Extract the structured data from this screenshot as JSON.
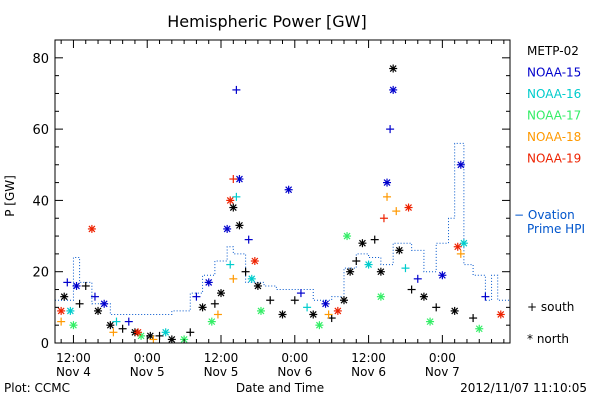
{
  "chart_data": {
    "type": "scatter",
    "title": "Hemispheric Power [GW]",
    "xlabel": "Date and Time",
    "ylabel": "P [GW]",
    "ylim": [
      0,
      85
    ],
    "xlim": [
      "2012-11-04 09:00",
      "2012-11-07 11:00"
    ],
    "y_ticks": [
      0,
      20,
      40,
      60,
      80
    ],
    "x_ticks": [
      {
        "time": "2012-11-04 12:00",
        "label1": "12:00",
        "label2": "Nov 4"
      },
      {
        "time": "2012-11-05 00:00",
        "label1": "0:00",
        "label2": "Nov 5"
      },
      {
        "time": "2012-11-05 12:00",
        "label1": "12:00",
        "label2": "Nov 5"
      },
      {
        "time": "2012-11-06 00:00",
        "label1": "0:00",
        "label2": "Nov 6"
      },
      {
        "time": "2012-11-06 12:00",
        "label1": "12:00",
        "label2": "Nov 6"
      },
      {
        "time": "2012-11-07 00:00",
        "label1": "0:00",
        "label2": "Nov 7"
      }
    ],
    "legend_position": "right",
    "series": [
      {
        "name": "METP-02",
        "color": "#000000",
        "points": [
          {
            "x": "2012-11-04 10:30",
            "y": 13,
            "m": "star"
          },
          {
            "x": "2012-11-04 13:00",
            "y": 11,
            "m": "plus"
          },
          {
            "x": "2012-11-04 14:00",
            "y": 16,
            "m": "plus"
          },
          {
            "x": "2012-11-04 16:00",
            "y": 9,
            "m": "star"
          },
          {
            "x": "2012-11-04 18:00",
            "y": 5,
            "m": "star"
          },
          {
            "x": "2012-11-04 20:00",
            "y": 4,
            "m": "plus"
          },
          {
            "x": "2012-11-04 22:00",
            "y": 3,
            "m": "star"
          },
          {
            "x": "2012-11-05 00:30",
            "y": 2,
            "m": "star"
          },
          {
            "x": "2012-11-05 02:00",
            "y": 2,
            "m": "plus"
          },
          {
            "x": "2012-11-05 04:00",
            "y": 1,
            "m": "star"
          },
          {
            "x": "2012-11-05 07:00",
            "y": 3,
            "m": "plus"
          },
          {
            "x": "2012-11-05 09:00",
            "y": 10,
            "m": "star"
          },
          {
            "x": "2012-11-05 11:00",
            "y": 11,
            "m": "plus"
          },
          {
            "x": "2012-11-05 12:00",
            "y": 14,
            "m": "star"
          },
          {
            "x": "2012-11-05 14:00",
            "y": 38,
            "m": "star"
          },
          {
            "x": "2012-11-05 15:00",
            "y": 33,
            "m": "star"
          },
          {
            "x": "2012-11-05 16:00",
            "y": 20,
            "m": "plus"
          },
          {
            "x": "2012-11-05 18:00",
            "y": 16,
            "m": "star"
          },
          {
            "x": "2012-11-05 20:00",
            "y": 12,
            "m": "plus"
          },
          {
            "x": "2012-11-05 22:00",
            "y": 8,
            "m": "star"
          },
          {
            "x": "2012-11-06 00:00",
            "y": 12,
            "m": "plus"
          },
          {
            "x": "2012-11-06 03:00",
            "y": 8,
            "m": "star"
          },
          {
            "x": "2012-11-06 06:00",
            "y": 7,
            "m": "plus"
          },
          {
            "x": "2012-11-06 08:00",
            "y": 12,
            "m": "star"
          },
          {
            "x": "2012-11-06 09:00",
            "y": 20,
            "m": "star"
          },
          {
            "x": "2012-11-06 10:00",
            "y": 23,
            "m": "plus"
          },
          {
            "x": "2012-11-06 11:00",
            "y": 28,
            "m": "star"
          },
          {
            "x": "2012-11-06 13:00",
            "y": 29,
            "m": "plus"
          },
          {
            "x": "2012-11-06 14:00",
            "y": 20,
            "m": "star"
          },
          {
            "x": "2012-11-06 16:00",
            "y": 77,
            "m": "star"
          },
          {
            "x": "2012-11-06 17:00",
            "y": 26,
            "m": "star"
          },
          {
            "x": "2012-11-06 19:00",
            "y": 15,
            "m": "plus"
          },
          {
            "x": "2012-11-06 21:00",
            "y": 13,
            "m": "star"
          },
          {
            "x": "2012-11-06 23:00",
            "y": 10,
            "m": "plus"
          },
          {
            "x": "2012-11-07 02:00",
            "y": 9,
            "m": "star"
          },
          {
            "x": "2012-11-07 05:00",
            "y": 7,
            "m": "plus"
          }
        ]
      },
      {
        "name": "NOAA-15",
        "color": "#0000cc",
        "points": [
          {
            "x": "2012-11-04 11:00",
            "y": 17,
            "m": "plus"
          },
          {
            "x": "2012-11-04 12:30",
            "y": 16,
            "m": "star"
          },
          {
            "x": "2012-11-04 15:30",
            "y": 13,
            "m": "plus"
          },
          {
            "x": "2012-11-04 17:00",
            "y": 11,
            "m": "star"
          },
          {
            "x": "2012-11-04 21:00",
            "y": 6,
            "m": "plus"
          },
          {
            "x": "2012-11-05 08:00",
            "y": 13,
            "m": "plus"
          },
          {
            "x": "2012-11-05 10:00",
            "y": 17,
            "m": "star"
          },
          {
            "x": "2012-11-05 13:00",
            "y": 32,
            "m": "star"
          },
          {
            "x": "2012-11-05 14:30",
            "y": 71,
            "m": "plus"
          },
          {
            "x": "2012-11-05 15:00",
            "y": 46,
            "m": "star"
          },
          {
            "x": "2012-11-05 16:30",
            "y": 29,
            "m": "plus"
          },
          {
            "x": "2012-11-05 23:00",
            "y": 43,
            "m": "star"
          },
          {
            "x": "2012-11-06 01:00",
            "y": 14,
            "m": "plus"
          },
          {
            "x": "2012-11-06 05:00",
            "y": 11,
            "m": "star"
          },
          {
            "x": "2012-11-06 15:00",
            "y": 45,
            "m": "star"
          },
          {
            "x": "2012-11-06 15:30",
            "y": 60,
            "m": "plus"
          },
          {
            "x": "2012-11-06 16:00",
            "y": 71,
            "m": "star"
          },
          {
            "x": "2012-11-06 20:00",
            "y": 18,
            "m": "plus"
          },
          {
            "x": "2012-11-07 00:00",
            "y": 19,
            "m": "star"
          },
          {
            "x": "2012-11-07 03:00",
            "y": 50,
            "m": "star"
          },
          {
            "x": "2012-11-07 07:00",
            "y": 13,
            "m": "plus"
          }
        ]
      },
      {
        "name": "NOAA-16",
        "color": "#00cccc",
        "points": [
          {
            "x": "2012-11-04 11:30",
            "y": 9,
            "m": "star"
          },
          {
            "x": "2012-11-04 19:00",
            "y": 6,
            "m": "plus"
          },
          {
            "x": "2012-11-05 03:00",
            "y": 3,
            "m": "star"
          },
          {
            "x": "2012-11-05 13:30",
            "y": 22,
            "m": "plus"
          },
          {
            "x": "2012-11-05 14:30",
            "y": 41,
            "m": "plus"
          },
          {
            "x": "2012-11-05 17:00",
            "y": 18,
            "m": "star"
          },
          {
            "x": "2012-11-06 02:00",
            "y": 10,
            "m": "plus"
          },
          {
            "x": "2012-11-06 12:00",
            "y": 22,
            "m": "star"
          },
          {
            "x": "2012-11-06 18:00",
            "y": 21,
            "m": "plus"
          },
          {
            "x": "2012-11-07 03:30",
            "y": 28,
            "m": "star"
          }
        ]
      },
      {
        "name": "NOAA-17",
        "color": "#33ee66",
        "points": [
          {
            "x": "2012-11-04 12:00",
            "y": 5,
            "m": "star"
          },
          {
            "x": "2012-11-04 23:00",
            "y": 2,
            "m": "star"
          },
          {
            "x": "2012-11-05 06:00",
            "y": 1,
            "m": "star"
          },
          {
            "x": "2012-11-05 10:30",
            "y": 6,
            "m": "star"
          },
          {
            "x": "2012-11-05 18:30",
            "y": 9,
            "m": "star"
          },
          {
            "x": "2012-11-06 04:00",
            "y": 5,
            "m": "star"
          },
          {
            "x": "2012-11-06 08:30",
            "y": 30,
            "m": "star"
          },
          {
            "x": "2012-11-06 14:00",
            "y": 13,
            "m": "star"
          },
          {
            "x": "2012-11-06 22:00",
            "y": 6,
            "m": "star"
          },
          {
            "x": "2012-11-07 06:00",
            "y": 4,
            "m": "star"
          }
        ]
      },
      {
        "name": "NOAA-18",
        "color": "#ff9900",
        "points": [
          {
            "x": "2012-11-04 10:00",
            "y": 6,
            "m": "plus"
          },
          {
            "x": "2012-11-04 18:30",
            "y": 3,
            "m": "plus"
          },
          {
            "x": "2012-11-05 01:00",
            "y": 1,
            "m": "plus"
          },
          {
            "x": "2012-11-05 11:30",
            "y": 8,
            "m": "plus"
          },
          {
            "x": "2012-11-05 14:00",
            "y": 18,
            "m": "plus"
          },
          {
            "x": "2012-11-06 05:30",
            "y": 8,
            "m": "plus"
          },
          {
            "x": "2012-11-06 15:00",
            "y": 41,
            "m": "plus"
          },
          {
            "x": "2012-11-06 16:30",
            "y": 37,
            "m": "plus"
          },
          {
            "x": "2012-11-07 03:00",
            "y": 25,
            "m": "plus"
          }
        ]
      },
      {
        "name": "NOAA-19",
        "color": "#ee2200",
        "points": [
          {
            "x": "2012-11-04 10:00",
            "y": 9,
            "m": "star"
          },
          {
            "x": "2012-11-04 15:00",
            "y": 32,
            "m": "star"
          },
          {
            "x": "2012-11-04 22:30",
            "y": 3,
            "m": "star"
          },
          {
            "x": "2012-11-05 13:30",
            "y": 40,
            "m": "star"
          },
          {
            "x": "2012-11-05 14:00",
            "y": 46,
            "m": "plus"
          },
          {
            "x": "2012-11-05 17:30",
            "y": 23,
            "m": "star"
          },
          {
            "x": "2012-11-06 07:00",
            "y": 9,
            "m": "star"
          },
          {
            "x": "2012-11-06 14:30",
            "y": 35,
            "m": "plus"
          },
          {
            "x": "2012-11-06 18:30",
            "y": 38,
            "m": "star"
          },
          {
            "x": "2012-11-07 02:30",
            "y": 27,
            "m": "star"
          },
          {
            "x": "2012-11-07 09:30",
            "y": 8,
            "m": "star"
          }
        ]
      }
    ],
    "ovation_hpi": {
      "name": "Ovation Prime HPI",
      "color": "#0055cc",
      "style": "dotted-step",
      "points": [
        [
          "2012-11-04 09:00",
          12
        ],
        [
          "2012-11-04 12:00",
          24
        ],
        [
          "2012-11-04 13:00",
          17
        ],
        [
          "2012-11-04 15:00",
          11
        ],
        [
          "2012-11-04 18:00",
          8
        ],
        [
          "2012-11-05 00:00",
          8
        ],
        [
          "2012-11-05 04:00",
          9
        ],
        [
          "2012-11-05 07:00",
          14
        ],
        [
          "2012-11-05 09:00",
          19
        ],
        [
          "2012-11-05 11:00",
          23
        ],
        [
          "2012-11-05 13:00",
          27
        ],
        [
          "2012-11-05 14:00",
          25
        ],
        [
          "2012-11-05 16:00",
          17
        ],
        [
          "2012-11-05 19:00",
          16
        ],
        [
          "2012-11-05 21:00",
          15
        ],
        [
          "2012-11-06 00:00",
          15
        ],
        [
          "2012-11-06 03:00",
          12
        ],
        [
          "2012-11-06 06:00",
          13
        ],
        [
          "2012-11-06 08:00",
          21
        ],
        [
          "2012-11-06 10:00",
          25
        ],
        [
          "2012-11-06 12:00",
          24
        ],
        [
          "2012-11-06 14:00",
          22
        ],
        [
          "2012-11-06 16:00",
          28
        ],
        [
          "2012-11-06 19:00",
          26
        ],
        [
          "2012-11-06 21:00",
          20
        ],
        [
          "2012-11-06 23:00",
          28
        ],
        [
          "2012-11-07 01:00",
          35
        ],
        [
          "2012-11-07 02:00",
          56
        ],
        [
          "2012-11-07 03:30",
          22
        ],
        [
          "2012-11-07 05:00",
          19
        ],
        [
          "2012-11-07 07:00",
          12
        ],
        [
          "2012-11-07 08:00",
          19
        ],
        [
          "2012-11-07 09:00",
          12
        ],
        [
          "2012-11-07 11:00",
          12
        ]
      ]
    },
    "marker_legend": {
      "plus": "+ south",
      "star": "* north"
    },
    "footer": {
      "left": "Plot: CCMC",
      "right": "2012/11/07 11:10:05"
    }
  }
}
